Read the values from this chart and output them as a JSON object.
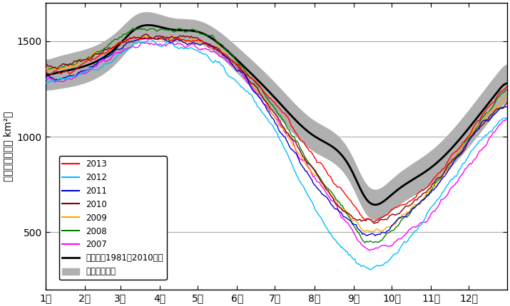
{
  "ylabel": "海氷域面積（万 km²）",
  "ylim": [
    200,
    1700
  ],
  "yticks": [
    500,
    1000,
    1500
  ],
  "month_labels": [
    "1月",
    "2月",
    "3月",
    "4月",
    "5月",
    "6月",
    "7月",
    "8月",
    "9月",
    "10月",
    "11月",
    "12月"
  ],
  "background_color": "#ffffff",
  "grid_color": "#aaaaaa",
  "legend_entries": [
    "2013",
    "2012",
    "2011",
    "2010",
    "2009",
    "2008",
    "2007",
    "平年値（1981～2010年）",
    "平年並の範囲"
  ],
  "line_colors": {
    "2013": "#ff0000",
    "2012": "#00bfff",
    "2011": "#0000cc",
    "2010": "#800000",
    "2009": "#ffa500",
    "2008": "#008000",
    "2007": "#ff00ff",
    "climatology": "#000000",
    "std_fill": "#b0b0b0"
  },
  "month_starts_day": [
    1,
    32,
    60,
    91,
    121,
    152,
    182,
    213,
    244,
    274,
    305,
    335
  ]
}
